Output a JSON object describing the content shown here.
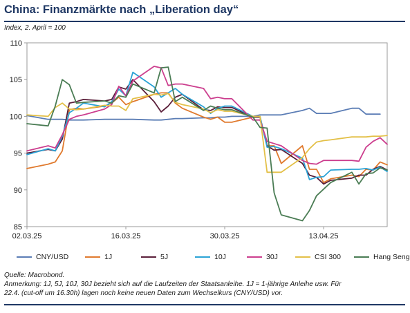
{
  "header": {
    "title": "China: Finanzmärkte nach „Liberation day“",
    "subtitle": "Index, 2. April = 100"
  },
  "footer": {
    "source": "Quelle: Macrobond.",
    "note_line1": "Anmerkung: 1J, 5J, 10J, 30J bezieht sich auf die Laufzeiten der Staatsanleihe. 1J = 1-jährige Anleihe usw. Für",
    "note_line2": "22.4. (cut-off um 16.30h) lagen noch keine neuen Daten zum Wechselkurs (CNY/USD) vor."
  },
  "chart_data": {
    "type": "line",
    "x": [
      0,
      1,
      2,
      3,
      4,
      5,
      6,
      7,
      8,
      9,
      10,
      11,
      12,
      13,
      14,
      15,
      16,
      17,
      18,
      19,
      20,
      21,
      22,
      23,
      24,
      25,
      26,
      27,
      28,
      29,
      30,
      31,
      32,
      33,
      34,
      35,
      36,
      37,
      38,
      39,
      40,
      41,
      42,
      43,
      44,
      45,
      46,
      47,
      48,
      49,
      50,
      51
    ],
    "x_tick_labels": [
      {
        "x": 0,
        "label": "02.03.25"
      },
      {
        "x": 14,
        "label": "16.03.25"
      },
      {
        "x": 28,
        "label": "30.03.25"
      },
      {
        "x": 42,
        "label": "13.04.25"
      }
    ],
    "ylim": [
      85,
      110
    ],
    "yticks": [
      85,
      90,
      95,
      100,
      105,
      110
    ],
    "grid": false,
    "legend_position": "bottom",
    "series": [
      {
        "name": "CNY/USD",
        "color": "#5b7db5",
        "values": [
          100.1,
          null,
          null,
          99.6,
          99.6,
          99.6,
          99.5,
          99.5,
          99.5,
          null,
          null,
          99.6,
          99.6,
          99.6,
          99.6,
          99.6,
          null,
          null,
          99.5,
          99.5,
          99.6,
          99.7,
          99.7,
          null,
          null,
          99.8,
          99.8,
          99.9,
          99.9,
          100.0,
          null,
          null,
          100.0,
          100.2,
          100.2,
          100.2,
          100.2,
          null,
          null,
          100.8,
          101.1,
          100.4,
          100.4,
          100.4,
          null,
          null,
          101.1,
          101.1,
          100.3,
          100.3,
          100.3,
          null
        ]
      },
      {
        "name": "1J",
        "color": "#e07a2e",
        "values": [
          92.9,
          null,
          null,
          93.5,
          93.8,
          95.3,
          100.9,
          101.1,
          101.0,
          null,
          null,
          101.4,
          101.8,
          102.6,
          101.6,
          102.0,
          null,
          null,
          103.0,
          103.2,
          103.2,
          101.8,
          101.1,
          null,
          null,
          99.9,
          99.6,
          99.9,
          99.2,
          99.2,
          null,
          null,
          99.9,
          99.9,
          96.0,
          96.0,
          93.6,
          null,
          null,
          96.0,
          92.8,
          92.8,
          91.0,
          91.5,
          null,
          null,
          92.0,
          91.8,
          92.8,
          92.7,
          93.8,
          93.4
        ]
      },
      {
        "name": "5J",
        "color": "#5b1f3a",
        "values": [
          95.0,
          null,
          null,
          95.5,
          95.3,
          96.9,
          101.8,
          102.0,
          102.3,
          null,
          null,
          102.1,
          102.3,
          104.0,
          103.7,
          105.0,
          null,
          null,
          102.0,
          100.6,
          101.4,
          102.6,
          103.0,
          null,
          null,
          100.9,
          100.8,
          101.3,
          101.2,
          101.2,
          null,
          null,
          99.9,
          99.9,
          96.0,
          95.4,
          95.5,
          null,
          null,
          93.6,
          92.0,
          91.7,
          90.8,
          91.3,
          null,
          null,
          91.6,
          92.0,
          92.0,
          92.8,
          93.2,
          92.7
        ]
      },
      {
        "name": "10J",
        "color": "#2ba3d6",
        "values": [
          94.8,
          null,
          null,
          95.6,
          95.3,
          97.3,
          100.5,
          101.1,
          101.8,
          null,
          null,
          101.3,
          102.0,
          103.7,
          102.8,
          106.0,
          null,
          null,
          104.0,
          102.6,
          103.2,
          103.8,
          103.0,
          null,
          null,
          101.3,
          100.4,
          101.1,
          101.4,
          101.4,
          null,
          null,
          100.0,
          100.0,
          95.8,
          95.9,
          95.6,
          null,
          null,
          94.3,
          91.4,
          91.7,
          91.8,
          92.7,
          null,
          null,
          92.8,
          92.8,
          92.9,
          92.7,
          93.1,
          92.5
        ]
      },
      {
        "name": "30J",
        "color": "#cc3e8e",
        "values": [
          95.3,
          null,
          null,
          96.0,
          95.7,
          97.5,
          99.6,
          100.0,
          100.2,
          null,
          null,
          101.0,
          101.6,
          104.1,
          102.8,
          104.8,
          null,
          null,
          106.8,
          106.6,
          104.2,
          104.4,
          104.4,
          null,
          null,
          103.8,
          102.4,
          102.6,
          102.4,
          102.4,
          null,
          null,
          99.5,
          99.5,
          96.6,
          96.3,
          96.0,
          null,
          null,
          94.0,
          93.6,
          93.5,
          94.0,
          94.0,
          null,
          null,
          94.0,
          93.9,
          95.8,
          96.6,
          97.1,
          96.2
        ]
      },
      {
        "name": "CSI 300",
        "color": "#e3c048",
        "values": [
          100.2,
          null,
          null,
          100.0,
          101.2,
          101.8,
          101.0,
          100.9,
          101.0,
          null,
          null,
          101.5,
          101.4,
          101.4,
          100.8,
          102.4,
          null,
          null,
          103.0,
          102.9,
          103.1,
          101.9,
          101.6,
          null,
          null,
          101.0,
          100.5,
          100.9,
          100.7,
          100.7,
          null,
          null,
          100.0,
          100.0,
          92.4,
          92.4,
          92.4,
          null,
          null,
          94.4,
          95.6,
          96.5,
          96.7,
          96.8,
          null,
          null,
          97.2,
          97.2,
          97.2,
          97.3,
          97.3,
          97.4
        ]
      },
      {
        "name": "Hang Seng",
        "color": "#4a7c54",
        "values": [
          99.0,
          null,
          null,
          98.7,
          101.4,
          105.0,
          104.3,
          101.8,
          101.9,
          null,
          null,
          102.1,
          101.8,
          102.8,
          102.6,
          104.4,
          null,
          null,
          103.2,
          106.6,
          106.7,
          102.0,
          102.6,
          null,
          null,
          100.8,
          101.4,
          101.1,
          100.9,
          100.9,
          null,
          null,
          99.9,
          98.5,
          98.4,
          89.6,
          86.6,
          null,
          null,
          85.8,
          87.2,
          89.2,
          90.1,
          91.0,
          null,
          null,
          92.4,
          90.8,
          92.2,
          92.3,
          93.0,
          92.7
        ]
      }
    ]
  }
}
